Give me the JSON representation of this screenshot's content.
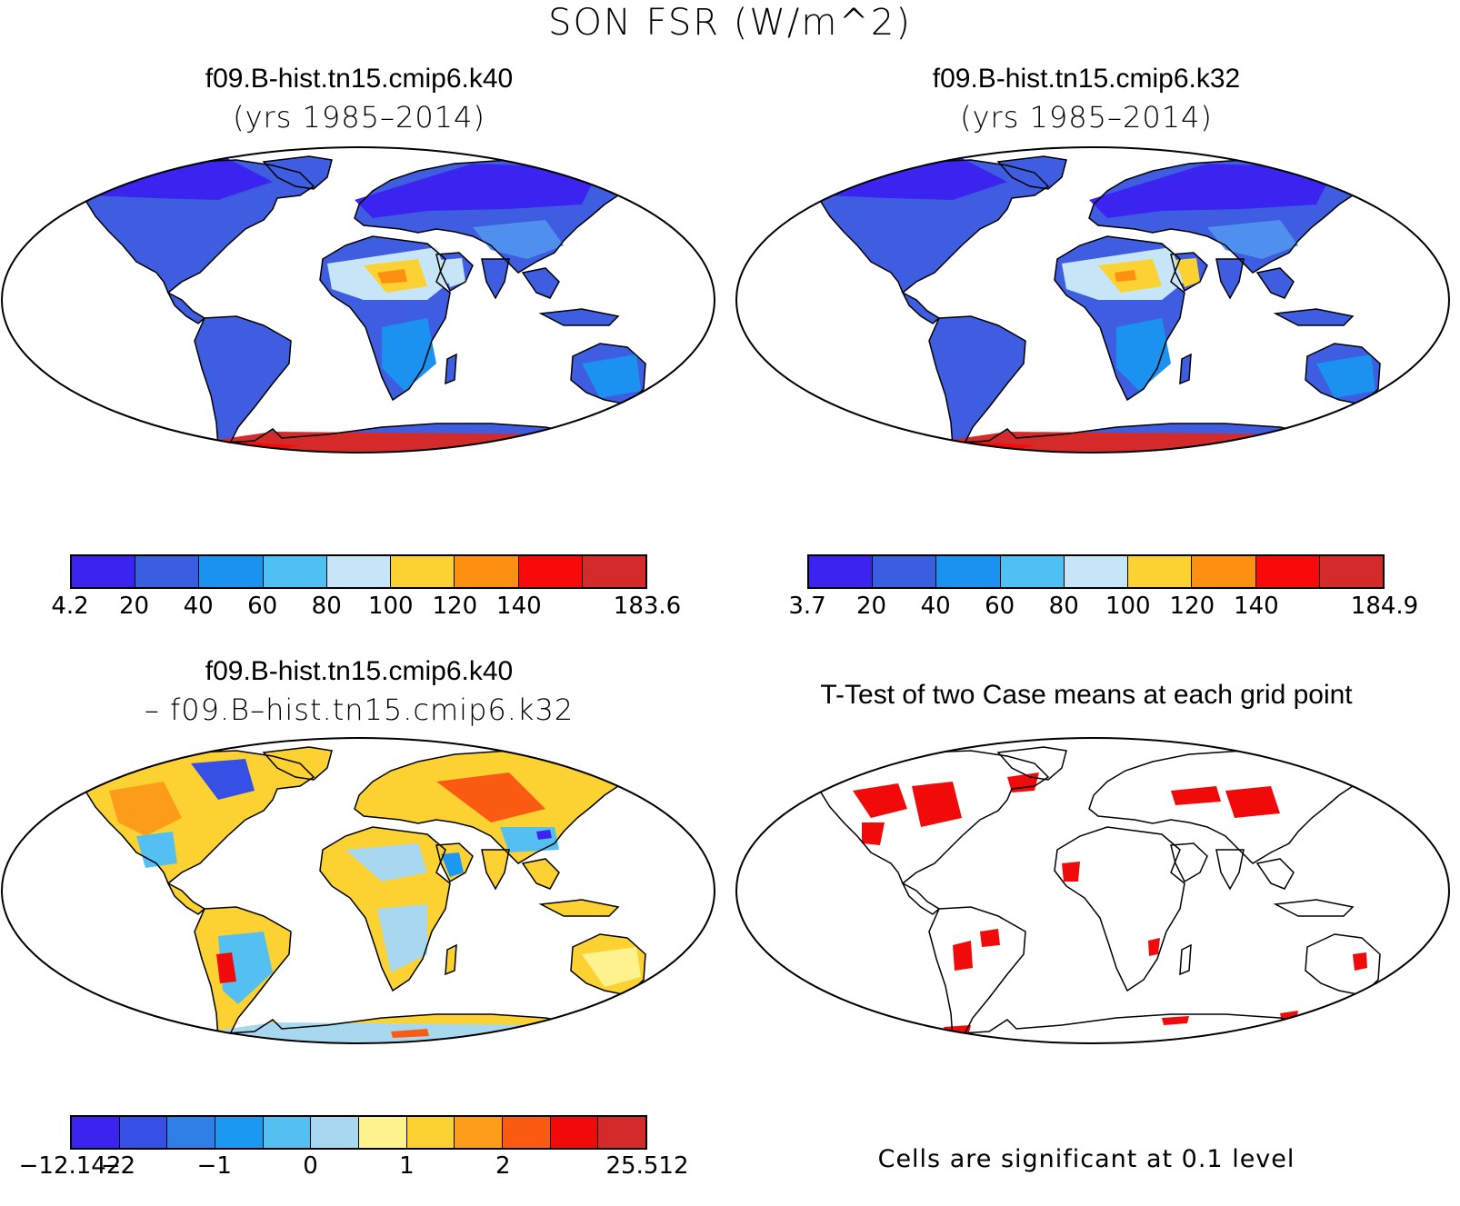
{
  "figure": {
    "title": "SON FSR (W/m^2)"
  },
  "panels": {
    "top_left": {
      "title": "f09.B-hist.tn15.cmip6.k40",
      "subtitle": "(yrs 1985–2014)",
      "colorbar": {
        "colors": [
          "#3b24f0",
          "#3a5ee0",
          "#1b92f0",
          "#4fc0f3",
          "#c6e6f8",
          "#fcd232",
          "#fd9010",
          "#f80a0a",
          "#d42a2a"
        ],
        "labels": [
          "4.2",
          "20",
          "40",
          "60",
          "80",
          "100",
          "120",
          "140",
          "",
          "183.6"
        ]
      }
    },
    "top_right": {
      "title": "f09.B-hist.tn15.cmip6.k32",
      "subtitle": "(yrs 1985–2014)",
      "colorbar": {
        "colors": [
          "#3b24f0",
          "#3a5ee0",
          "#1b92f0",
          "#4fc0f3",
          "#c6e6f8",
          "#fcd232",
          "#fd9010",
          "#f80a0a",
          "#d42a2a"
        ],
        "labels": [
          "3.7",
          "20",
          "40",
          "60",
          "80",
          "100",
          "120",
          "140",
          "",
          "184.9"
        ]
      }
    },
    "bottom_left": {
      "title": "f09.B-hist.tn15.cmip6.k40",
      "subtitle": "– f09.B–hist.tn15.cmip6.k32",
      "colorbar": {
        "colors": [
          "#3b24f0",
          "#3650e6",
          "#2f7fe6",
          "#1b98f2",
          "#54c0f2",
          "#a8d8f0",
          "#fdf28e",
          "#fcd232",
          "#fd9c1a",
          "#fa5a12",
          "#f00a0a",
          "#d42a2a"
        ],
        "labels": [
          "−12.142",
          "−2",
          "",
          "−1",
          "",
          "0",
          "",
          "1",
          "",
          "2",
          "",
          "",
          "25.512"
        ]
      }
    },
    "bottom_right": {
      "title": "T-Test of two Case means at each grid point",
      "note": "Cells are significant at 0.1 level",
      "significance_color": "#f00a0a"
    }
  }
}
